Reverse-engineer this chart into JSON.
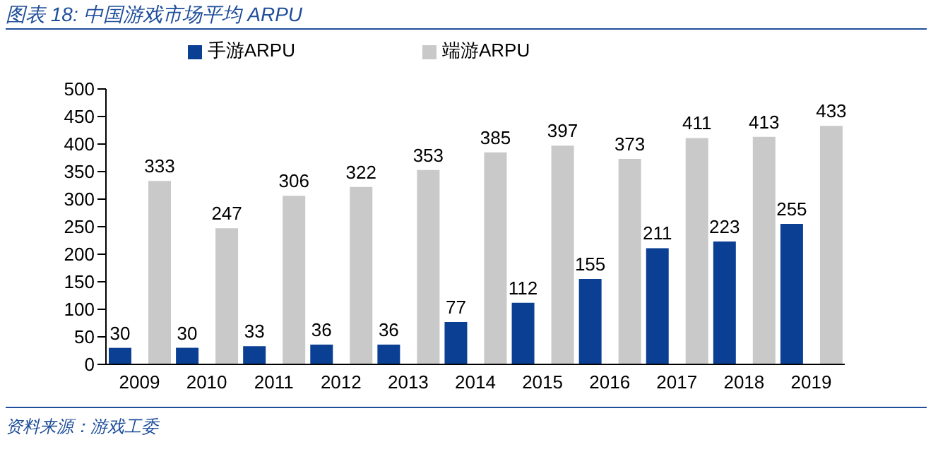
{
  "chart_data": {
    "type": "bar",
    "title": "图表 18:  中国游戏市场平均 ARPU",
    "categories": [
      "2009",
      "2010",
      "2011",
      "2012",
      "2013",
      "2014",
      "2015",
      "2016",
      "2017",
      "2018",
      "2019"
    ],
    "series": [
      {
        "name": "手游ARPU",
        "color": "#0b3f94",
        "values": [
          30,
          30,
          33,
          36,
          36,
          77,
          112,
          155,
          211,
          223,
          255
        ]
      },
      {
        "name": "端游ARPU",
        "color": "#c9c9c9",
        "values": [
          333,
          247,
          306,
          322,
          353,
          385,
          397,
          373,
          411,
          413,
          433
        ]
      }
    ],
    "ylim": [
      0,
      500
    ],
    "yticks": [
      0,
      50,
      100,
      150,
      200,
      250,
      300,
      350,
      400,
      450,
      500
    ],
    "grid": false,
    "legend": "top",
    "data_labels": true,
    "annotations": [
      "资料来源：游戏工委"
    ]
  }
}
